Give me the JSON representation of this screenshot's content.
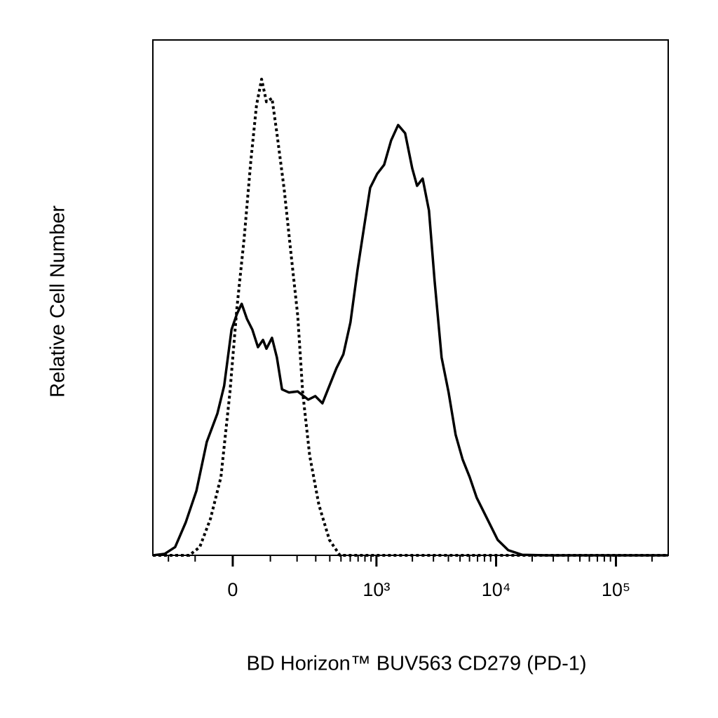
{
  "chart_data": {
    "type": "line",
    "xlabel": "BD Horizon™ BUV563 CD279 (PD-1)",
    "ylabel": "Relative Cell Number",
    "xscale": "asinh",
    "asinh_cofactor": 127,
    "xlim": [
      -281,
      273000
    ],
    "ylim": [
      0,
      100
    ],
    "xticks": [
      0,
      {
        "value": 1000,
        "label": "10³"
      },
      {
        "value": 10000,
        "label": "10⁴"
      },
      {
        "value": 100000,
        "label": "10⁵"
      }
    ],
    "xminorticks": [
      -200,
      -100,
      100,
      200,
      300,
      400,
      500,
      600,
      700,
      800,
      900,
      2000,
      3000,
      4000,
      5000,
      6000,
      7000,
      8000,
      9000,
      20000,
      30000,
      40000,
      50000,
      60000,
      70000,
      80000,
      90000,
      200000
    ],
    "series": [
      {
        "color": "#000000",
        "dash": "solid",
        "x": [
          -281,
          -217,
          -171,
          -131,
          -96,
          -66,
          -38,
          -21,
          -3,
          10,
          22,
          35,
          49,
          64,
          78,
          88,
          105,
          121,
          139,
          165,
          203,
          256,
          297,
          344,
          397,
          457,
          524,
          603,
          692,
          793,
          885,
          1013,
          1161,
          1328,
          1521,
          1741,
          1993,
          2189,
          2438,
          2753,
          3068,
          3510,
          4017,
          4597,
          5260,
          6017,
          6886,
          8426,
          10312,
          12620,
          16540,
          26490,
          273000
        ],
        "values": [
          0,
          0.3,
          1.6,
          6.4,
          12.5,
          22.0,
          27.5,
          32.9,
          43.8,
          46.8,
          48.8,
          45.9,
          43.8,
          40.4,
          41.8,
          40.1,
          42.2,
          38.4,
          32.2,
          31.6,
          31.8,
          30.2,
          30.9,
          29.5,
          32.9,
          36.3,
          39.0,
          45.2,
          55.4,
          64.2,
          71.3,
          74.0,
          75.8,
          80.5,
          83.5,
          81.9,
          75.1,
          71.7,
          73.1,
          66.9,
          53.3,
          38.4,
          31.6,
          23.4,
          18.6,
          15.2,
          11.2,
          7.1,
          3.0,
          1.0,
          0.1,
          0,
          0
        ]
      },
      {
        "color": "#000000",
        "dash": "dotted",
        "x": [
          -281,
          -119,
          -86,
          -56,
          -29,
          -7,
          10,
          28,
          45,
          60,
          74,
          88,
          105,
          121,
          147,
          173,
          203,
          227,
          264,
          320,
          397,
          490,
          273000
        ],
        "values": [
          0,
          0,
          1.6,
          7.1,
          15.2,
          31.6,
          47.9,
          61.5,
          76.5,
          87.3,
          92.4,
          88.0,
          88.7,
          81.9,
          71.0,
          58.8,
          46.5,
          31.6,
          19.3,
          9.8,
          3.0,
          0,
          0
        ]
      }
    ]
  }
}
